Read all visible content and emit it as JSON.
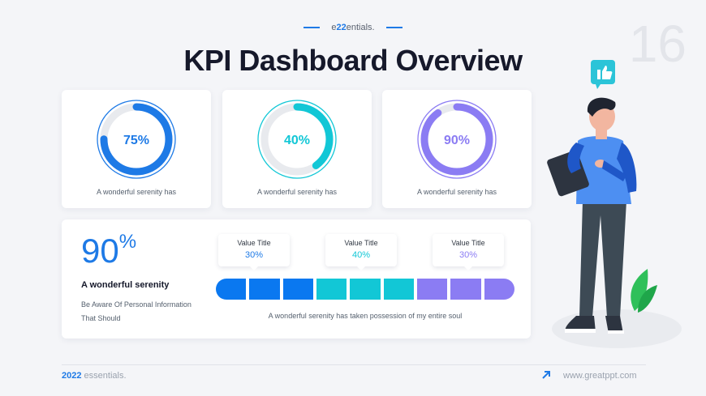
{
  "brand": {
    "prefix": "e",
    "highlight": "22",
    "suffix": "entials."
  },
  "slide_number": "16",
  "title": "KPI Dashboard Overview",
  "rings": [
    {
      "percent": 75,
      "label": "75%",
      "caption": "A wonderful  serenity has",
      "color": "#1e7ae6"
    },
    {
      "percent": 40,
      "label": "40%",
      "caption": "A wonderful  serenity has",
      "color": "#12c7d6"
    },
    {
      "percent": 90,
      "label": "90%",
      "caption": "A wonderful  serenity has",
      "color": "#8b7cf3"
    }
  ],
  "summary": {
    "value": "90",
    "unit": "%",
    "heading": "A wonderful serenity",
    "subtext": "Be Aware  Of Personal Information  That Should"
  },
  "tooltips": [
    {
      "title": "Value Title",
      "value": "30%",
      "color": "#1e7ae6"
    },
    {
      "title": "Value Title",
      "value": "40%",
      "color": "#12c7d6"
    },
    {
      "title": "Value Title",
      "value": "30%",
      "color": "#8b7cf3"
    }
  ],
  "bar": {
    "segments": [
      {
        "group": 1,
        "color": "#0a78f0"
      },
      {
        "group": 1,
        "color": "#0a78f0"
      },
      {
        "group": 1,
        "color": "#0a78f0"
      },
      {
        "group": 2,
        "color": "#12c7d6"
      },
      {
        "group": 2,
        "color": "#12c7d6"
      },
      {
        "group": 2,
        "color": "#12c7d6"
      },
      {
        "group": 3,
        "color": "#8b7cf3"
      },
      {
        "group": 3,
        "color": "#8b7cf3"
      },
      {
        "group": 3,
        "color": "#8b7cf3"
      }
    ],
    "caption": "A wonderful  serenity has taken  possession of my  entire soul"
  },
  "footer": {
    "year": "2022",
    "label": "essentials.",
    "website": "www.greatppt.com"
  },
  "colors": {
    "accent": "#1e7ae6",
    "cyan": "#12c7d6",
    "purple": "#8b7cf3"
  }
}
